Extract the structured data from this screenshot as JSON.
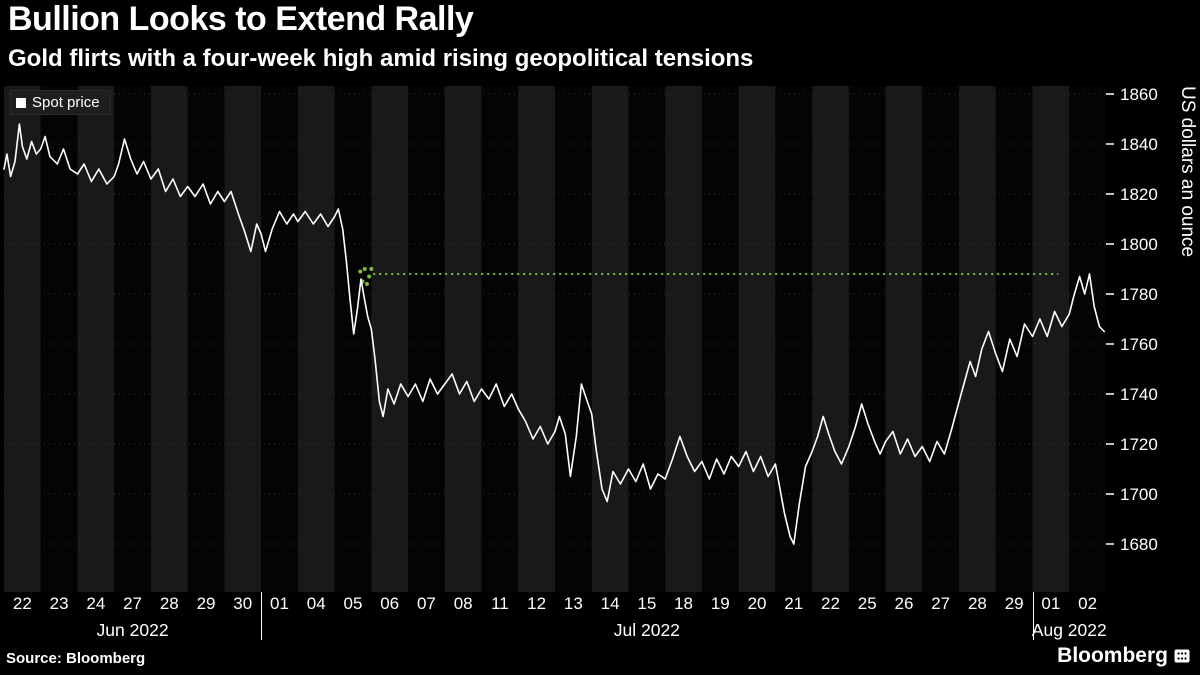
{
  "header": {
    "title": "Bullion Looks to Extend Rally",
    "subtitle": "Gold flirts with a four-week high amid rising geopolitical tensions"
  },
  "legend": {
    "label": "Spot price",
    "swatch_color": "#ffffff"
  },
  "footer": {
    "source": "Source: Bloomberg",
    "brand": "Bloomberg"
  },
  "chart_data": {
    "type": "line",
    "title": "Bullion Looks to Extend Rally",
    "subtitle": "Gold flirts with a four-week high amid rising geopolitical tensions",
    "ylabel": "US dollars an ounce",
    "ylim": [
      1662,
      1863
    ],
    "yticks": [
      1860,
      1840,
      1820,
      1800,
      1780,
      1760,
      1740,
      1720,
      1700,
      1680
    ],
    "grid": "horizontal-dotted",
    "legend_position": "top-left",
    "background_bands": "alternating-daily",
    "band_colors": [
      "#191919",
      "#040404"
    ],
    "months": [
      {
        "label": "Jun 2022",
        "days": [
          "22",
          "23",
          "24",
          "27",
          "28",
          "29",
          "30"
        ]
      },
      {
        "label": "Jul 2022",
        "days": [
          "01",
          "04",
          "05",
          "06",
          "07",
          "08",
          "11",
          "12",
          "13",
          "14",
          "15",
          "18",
          "19",
          "20",
          "21",
          "22",
          "25",
          "26",
          "27",
          "28",
          "29"
        ]
      },
      {
        "label": "Aug 2022",
        "days": [
          "01",
          "02"
        ]
      }
    ],
    "reference_line": {
      "value": 1788,
      "color": "#7cbe3d",
      "style": "dotted",
      "x_start": 10.05,
      "x_end": 28.7
    },
    "marker_cluster": {
      "color": "#7cbe3d",
      "points": [
        [
          9.7,
          1789
        ],
        [
          9.76,
          1785
        ],
        [
          9.82,
          1790
        ],
        [
          9.88,
          1784
        ],
        [
          9.94,
          1787
        ],
        [
          10.0,
          1790
        ]
      ]
    },
    "series": [
      {
        "name": "Spot price",
        "color": "#ffffff",
        "points": [
          [
            0.0,
            1830
          ],
          [
            0.08,
            1836
          ],
          [
            0.18,
            1827
          ],
          [
            0.3,
            1833
          ],
          [
            0.42,
            1848
          ],
          [
            0.5,
            1839
          ],
          [
            0.62,
            1834
          ],
          [
            0.75,
            1841
          ],
          [
            0.88,
            1836
          ],
          [
            1.0,
            1838
          ],
          [
            1.12,
            1843
          ],
          [
            1.25,
            1835
          ],
          [
            1.45,
            1832
          ],
          [
            1.62,
            1838
          ],
          [
            1.8,
            1830
          ],
          [
            2.0,
            1828
          ],
          [
            2.18,
            1832
          ],
          [
            2.38,
            1825
          ],
          [
            2.58,
            1830
          ],
          [
            2.8,
            1824
          ],
          [
            3.0,
            1827
          ],
          [
            3.12,
            1832
          ],
          [
            3.28,
            1842
          ],
          [
            3.45,
            1834
          ],
          [
            3.62,
            1828
          ],
          [
            3.8,
            1833
          ],
          [
            4.0,
            1826
          ],
          [
            4.2,
            1830
          ],
          [
            4.4,
            1821
          ],
          [
            4.6,
            1826
          ],
          [
            4.8,
            1819
          ],
          [
            5.0,
            1823
          ],
          [
            5.2,
            1819
          ],
          [
            5.42,
            1824
          ],
          [
            5.62,
            1816
          ],
          [
            5.82,
            1821
          ],
          [
            6.0,
            1817
          ],
          [
            6.18,
            1821
          ],
          [
            6.38,
            1812
          ],
          [
            6.55,
            1805
          ],
          [
            6.72,
            1797
          ],
          [
            6.88,
            1808
          ],
          [
            7.0,
            1804
          ],
          [
            7.12,
            1797
          ],
          [
            7.3,
            1806
          ],
          [
            7.5,
            1813
          ],
          [
            7.7,
            1808
          ],
          [
            7.88,
            1812
          ],
          [
            8.0,
            1809
          ],
          [
            8.2,
            1813
          ],
          [
            8.42,
            1808
          ],
          [
            8.62,
            1812
          ],
          [
            8.82,
            1807
          ],
          [
            9.0,
            1811
          ],
          [
            9.1,
            1814
          ],
          [
            9.22,
            1806
          ],
          [
            9.32,
            1793
          ],
          [
            9.42,
            1778
          ],
          [
            9.52,
            1764
          ],
          [
            9.62,
            1774
          ],
          [
            9.72,
            1786
          ],
          [
            9.8,
            1779
          ],
          [
            9.9,
            1771
          ],
          [
            10.0,
            1766
          ],
          [
            10.1,
            1754
          ],
          [
            10.22,
            1737
          ],
          [
            10.32,
            1731
          ],
          [
            10.45,
            1742
          ],
          [
            10.62,
            1736
          ],
          [
            10.8,
            1744
          ],
          [
            11.0,
            1739
          ],
          [
            11.2,
            1744
          ],
          [
            11.4,
            1737
          ],
          [
            11.6,
            1746
          ],
          [
            11.8,
            1740
          ],
          [
            12.0,
            1744
          ],
          [
            12.2,
            1748
          ],
          [
            12.4,
            1740
          ],
          [
            12.6,
            1745
          ],
          [
            12.8,
            1737
          ],
          [
            13.0,
            1742
          ],
          [
            13.2,
            1738
          ],
          [
            13.4,
            1744
          ],
          [
            13.62,
            1735
          ],
          [
            13.82,
            1740
          ],
          [
            14.0,
            1734
          ],
          [
            14.2,
            1729
          ],
          [
            14.4,
            1722
          ],
          [
            14.6,
            1727
          ],
          [
            14.8,
            1720
          ],
          [
            15.0,
            1725
          ],
          [
            15.12,
            1731
          ],
          [
            15.28,
            1724
          ],
          [
            15.42,
            1707
          ],
          [
            15.58,
            1723
          ],
          [
            15.72,
            1744
          ],
          [
            15.88,
            1737
          ],
          [
            16.0,
            1732
          ],
          [
            16.12,
            1718
          ],
          [
            16.28,
            1702
          ],
          [
            16.42,
            1697
          ],
          [
            16.58,
            1709
          ],
          [
            16.78,
            1704
          ],
          [
            17.0,
            1710
          ],
          [
            17.2,
            1705
          ],
          [
            17.4,
            1712
          ],
          [
            17.6,
            1702
          ],
          [
            17.8,
            1708
          ],
          [
            18.0,
            1706
          ],
          [
            18.2,
            1714
          ],
          [
            18.4,
            1723
          ],
          [
            18.6,
            1715
          ],
          [
            18.8,
            1709
          ],
          [
            19.0,
            1713
          ],
          [
            19.2,
            1706
          ],
          [
            19.4,
            1714
          ],
          [
            19.6,
            1708
          ],
          [
            19.8,
            1715
          ],
          [
            20.0,
            1711
          ],
          [
            20.2,
            1717
          ],
          [
            20.4,
            1709
          ],
          [
            20.6,
            1715
          ],
          [
            20.8,
            1707
          ],
          [
            21.0,
            1712
          ],
          [
            21.1,
            1704
          ],
          [
            21.25,
            1692
          ],
          [
            21.4,
            1683
          ],
          [
            21.5,
            1680
          ],
          [
            21.65,
            1696
          ],
          [
            21.82,
            1711
          ],
          [
            22.0,
            1717
          ],
          [
            22.15,
            1723
          ],
          [
            22.3,
            1731
          ],
          [
            22.45,
            1724
          ],
          [
            22.62,
            1717
          ],
          [
            22.8,
            1712
          ],
          [
            23.0,
            1719
          ],
          [
            23.18,
            1727
          ],
          [
            23.35,
            1736
          ],
          [
            23.52,
            1728
          ],
          [
            23.7,
            1721
          ],
          [
            23.85,
            1716
          ],
          [
            24.0,
            1721
          ],
          [
            24.2,
            1725
          ],
          [
            24.4,
            1716
          ],
          [
            24.6,
            1722
          ],
          [
            24.8,
            1715
          ],
          [
            25.0,
            1719
          ],
          [
            25.2,
            1713
          ],
          [
            25.4,
            1721
          ],
          [
            25.6,
            1716
          ],
          [
            25.8,
            1726
          ],
          [
            26.0,
            1737
          ],
          [
            26.15,
            1745
          ],
          [
            26.3,
            1753
          ],
          [
            26.45,
            1747
          ],
          [
            26.62,
            1758
          ],
          [
            26.8,
            1765
          ],
          [
            27.0,
            1756
          ],
          [
            27.18,
            1749
          ],
          [
            27.38,
            1762
          ],
          [
            27.58,
            1755
          ],
          [
            27.78,
            1768
          ],
          [
            28.0,
            1763
          ],
          [
            28.2,
            1770
          ],
          [
            28.4,
            1763
          ],
          [
            28.6,
            1773
          ],
          [
            28.8,
            1767
          ],
          [
            29.0,
            1772
          ],
          [
            29.12,
            1779
          ],
          [
            29.28,
            1787
          ],
          [
            29.42,
            1780
          ],
          [
            29.55,
            1788
          ],
          [
            29.68,
            1775
          ],
          [
            29.82,
            1767
          ],
          [
            29.95,
            1765
          ]
        ]
      }
    ]
  }
}
